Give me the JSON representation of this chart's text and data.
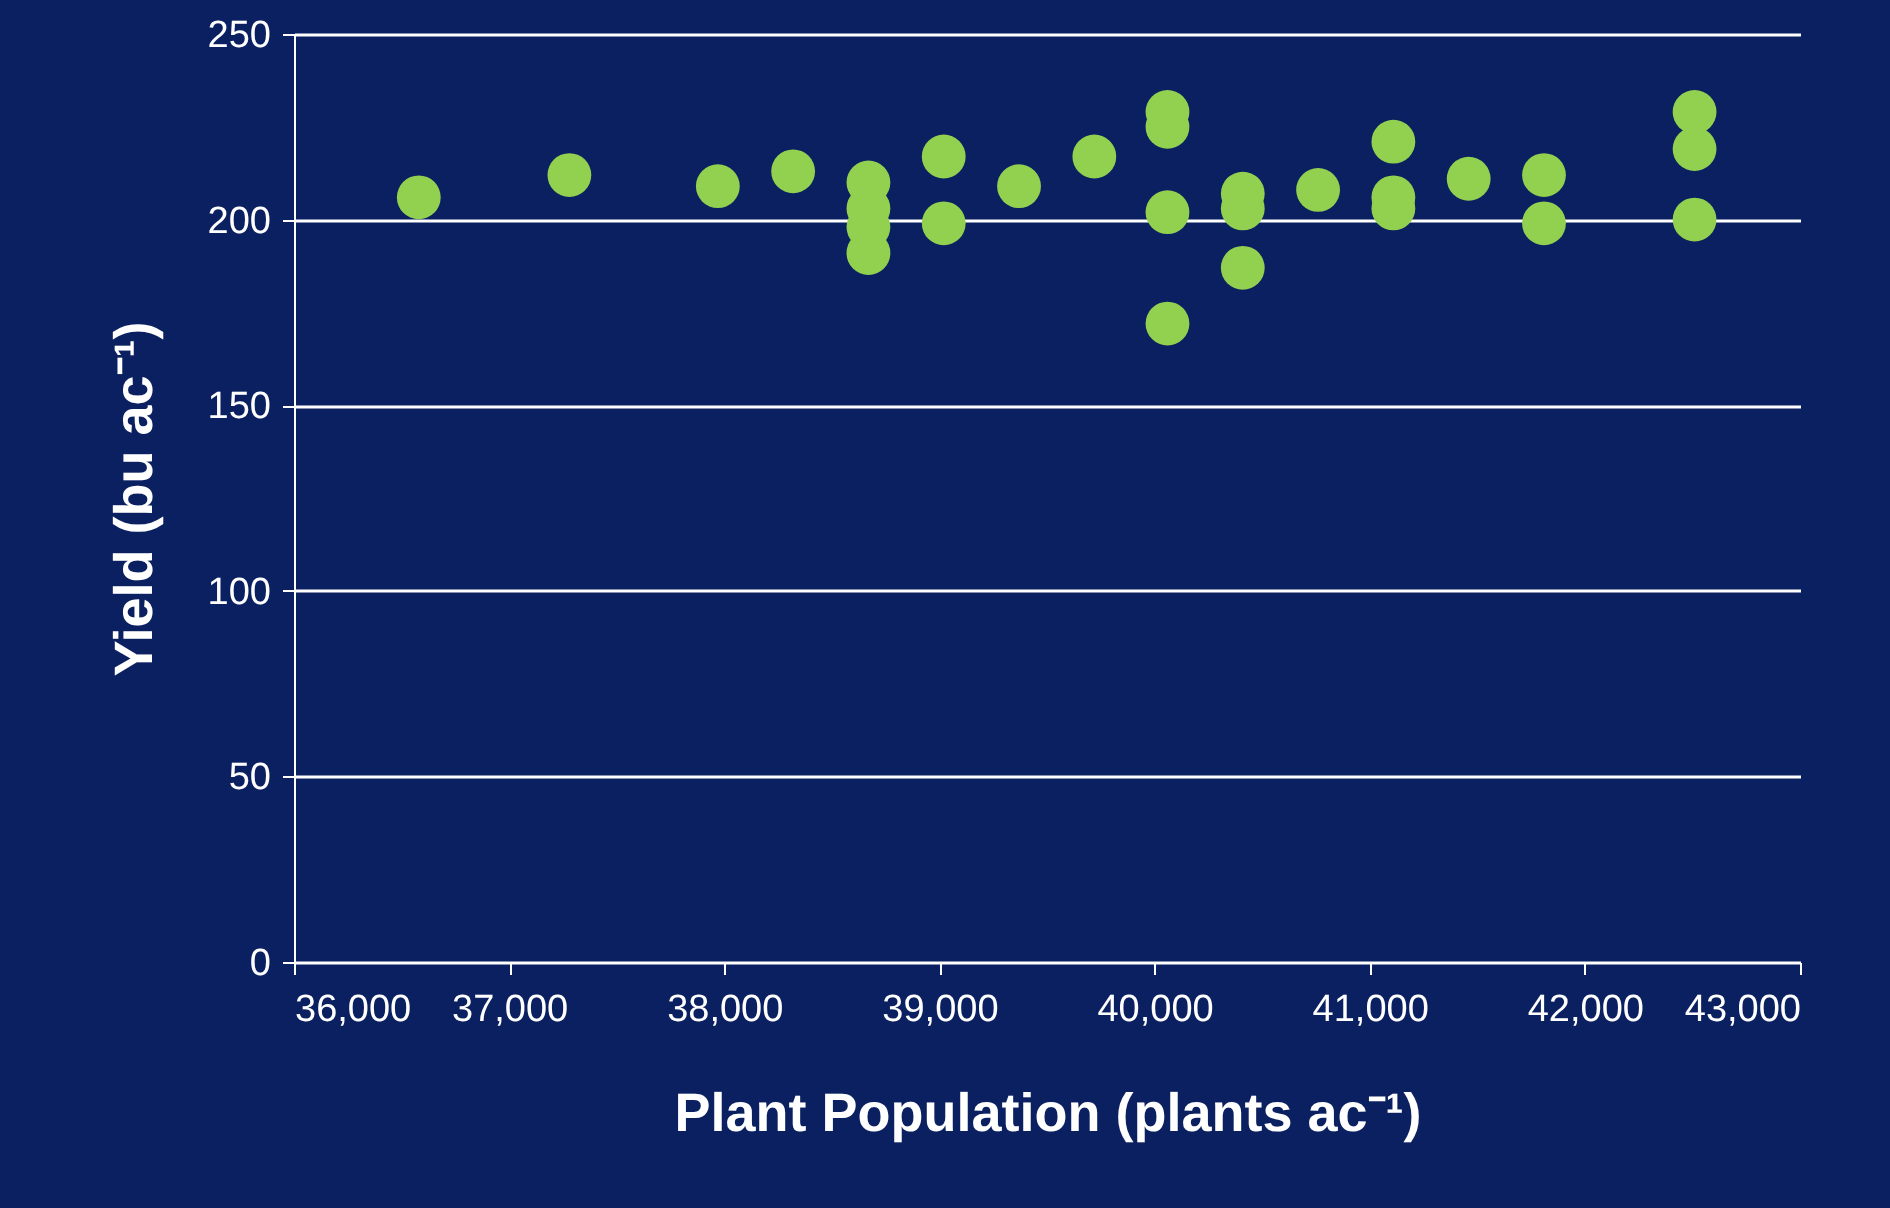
{
  "chart_data": {
    "type": "scatter",
    "xlabel": "Plant Population (plants ac⁻¹)",
    "ylabel": "Yield (bu ac⁻¹)",
    "x": [
      36580,
      37280,
      37970,
      38320,
      38670,
      38670,
      38670,
      38670,
      39020,
      39020,
      39370,
      39720,
      40060,
      40060,
      40060,
      40060,
      40410,
      40410,
      40410,
      40760,
      41110,
      41110,
      41110,
      41460,
      41810,
      41810,
      42510,
      42510,
      42510
    ],
    "values": [
      206,
      212,
      209,
      213,
      210,
      203,
      198,
      191,
      217,
      199,
      209,
      217,
      229,
      225,
      202,
      172,
      207,
      203,
      187,
      208,
      221,
      206,
      203,
      211,
      212,
      199,
      229,
      219,
      200
    ],
    "color": "#92d050",
    "marker": "circle",
    "xlim": [
      36000,
      43000
    ],
    "xticks": [
      {
        "value": 36000,
        "label": "36,000"
      },
      {
        "value": 37000,
        "label": "37,000"
      },
      {
        "value": 38000,
        "label": "38,000"
      },
      {
        "value": 39000,
        "label": "39,000"
      },
      {
        "value": 40000,
        "label": "40,000"
      },
      {
        "value": 41000,
        "label": "41,000"
      },
      {
        "value": 42000,
        "label": "42,000"
      },
      {
        "value": 43000,
        "label": "43,000"
      }
    ],
    "ylim": [
      0,
      250
    ],
    "yticks": [
      0,
      50,
      100,
      150,
      200,
      250
    ],
    "grid": "y"
  }
}
